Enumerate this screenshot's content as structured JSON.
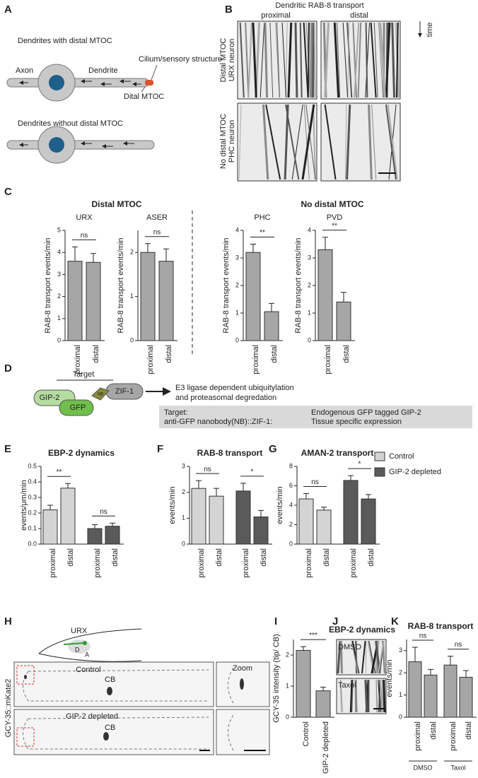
{
  "panel_labels": [
    "A",
    "B",
    "C",
    "D",
    "E",
    "F",
    "G",
    "H",
    "I",
    "J",
    "K"
  ],
  "A": {
    "title1": "Dendrites with distal MTOC",
    "axon": "Axon",
    "dendrite": "Dendrite",
    "cilium": "Cilium/sensory structure",
    "mtoc": "Dital MTOC",
    "title2": "Dendrites without distal MTOC"
  },
  "B": {
    "title": "Dendritic RAB-8 transport",
    "proximal": "proximal",
    "distal": "distal",
    "time": "time",
    "row1": [
      "Distal MTOC",
      "URX neuron"
    ],
    "row2": [
      "No distal MTOC",
      "PHC neuron"
    ]
  },
  "C": {
    "left": "Distal MTOC",
    "right": "No distal MTOC"
  },
  "D": {
    "target": "Target",
    "gip2": "GIP-2",
    "gfp": "GFP",
    "nb": "NB",
    "zif1": "ZIF-1",
    "outcome": [
      "E3 ligase dependent ubiquitylation",
      "and proteasomal degredation"
    ],
    "table": [
      [
        "Target:",
        "Endogenous GFP tagged GIP-2"
      ],
      [
        "anti-GFP nanobody(NB)::ZIF-1:",
        "Tissue specific expression"
      ]
    ]
  },
  "H": {
    "urx": "URX",
    "d": "D",
    "a": "A",
    "control": "Control",
    "cb1": "CB",
    "zoom": "Zoom",
    "depleted": "GIP-2 depleted",
    "cb2": "CB",
    "ylabel": "GCY-35::mKate2"
  },
  "J": {
    "title": "EBP-2 dynamics",
    "dmso": "DMSO",
    "taxol": "Taxol"
  },
  "legend": [
    {
      "name": "Control",
      "color": "#d4d4d4"
    },
    {
      "name": "GIP-2 depleted",
      "color": "#5a5a5a"
    }
  ],
  "chart_data": [
    {
      "type": "bar",
      "title": "URX",
      "ylabel": "RAB-8 transport events/min",
      "categories": [
        "proximal",
        "distal"
      ],
      "values": [
        3.6,
        3.55
      ],
      "errors": [
        0.65,
        0.4
      ],
      "color": "#a6a6a6",
      "ylim": [
        0,
        5
      ],
      "yticks": [
        0,
        1,
        2,
        3,
        4,
        5
      ],
      "significance": [
        "ns"
      ]
    },
    {
      "type": "bar",
      "title": "ASER",
      "ylabel": "RAB-8 transport events/min",
      "categories": [
        "proximal",
        "distal"
      ],
      "values": [
        2.0,
        1.8
      ],
      "errors": [
        0.2,
        0.28
      ],
      "color": "#a6a6a6",
      "ylim": [
        0,
        2.5
      ],
      "yticks": [
        0,
        1,
        2
      ],
      "significance": [
        "ns"
      ]
    },
    {
      "type": "bar",
      "title": "PHC",
      "ylabel": "RAB-8 transport events/min",
      "categories": [
        "proximal",
        "distal"
      ],
      "values": [
        3.2,
        1.05
      ],
      "errors": [
        0.3,
        0.3
      ],
      "color": "#a6a6a6",
      "ylim": [
        0,
        4
      ],
      "yticks": [
        0,
        1,
        2,
        3,
        4
      ],
      "significance": [
        "**"
      ]
    },
    {
      "type": "bar",
      "title": "PVD",
      "ylabel": "RAB-8 transport events/min",
      "categories": [
        "proximal",
        "distal"
      ],
      "values": [
        3.3,
        1.4
      ],
      "errors": [
        0.45,
        0.35
      ],
      "color": "#a6a6a6",
      "ylim": [
        0,
        4
      ],
      "yticks": [
        0,
        1,
        2,
        3,
        4
      ],
      "significance": [
        "**"
      ]
    },
    {
      "type": "bar",
      "title": "EBP-2 dynamics",
      "ylabel": "events/μm/min",
      "categories": [
        "proximal",
        "distal",
        "proximal",
        "distal"
      ],
      "values": [
        0.22,
        0.36,
        0.1,
        0.115
      ],
      "errors": [
        0.03,
        0.03,
        0.025,
        0.02
      ],
      "colors": [
        "#d4d4d4",
        "#d4d4d4",
        "#5a5a5a",
        "#5a5a5a"
      ],
      "ylim": [
        0,
        0.5
      ],
      "yticks": [
        {
          "value": 0,
          "label": "0.0"
        },
        0.1,
        0.2,
        0.3,
        0.4,
        0.5
      ],
      "significance": [
        "**",
        "ns"
      ]
    },
    {
      "type": "bar",
      "title": "RAB-8 transport",
      "ylabel": "events/min",
      "categories": [
        "proximal",
        "distal",
        "proximal",
        "distal"
      ],
      "values": [
        2.15,
        1.85,
        2.05,
        1.05
      ],
      "errors": [
        0.3,
        0.3,
        0.3,
        0.25
      ],
      "colors": [
        "#d4d4d4",
        "#d4d4d4",
        "#5a5a5a",
        "#5a5a5a"
      ],
      "ylim": [
        0,
        3
      ],
      "yticks": [
        0,
        1,
        2,
        3
      ],
      "significance": [
        "ns",
        "*"
      ]
    },
    {
      "type": "bar",
      "title": "AMAN-2 transport",
      "ylabel": "events/min",
      "categories": [
        "proximal",
        "distal",
        "proximal",
        "distal"
      ],
      "values": [
        4.65,
        3.5,
        6.55,
        4.65
      ],
      "errors": [
        0.55,
        0.3,
        0.5,
        0.45
      ],
      "colors": [
        "#d4d4d4",
        "#d4d4d4",
        "#5a5a5a",
        "#5a5a5a"
      ],
      "ylim": [
        0,
        8
      ],
      "yticks": [
        0,
        2,
        4,
        6,
        8
      ],
      "significance": [
        "ns",
        "*"
      ]
    },
    {
      "type": "bar",
      "ylabel": "GCY-35 intensity (tip/ CB)",
      "categories": [
        "Control",
        "GIP-2 depleted"
      ],
      "values": [
        2.15,
        0.85
      ],
      "errors": [
        0.12,
        0.12
      ],
      "color": "#a6a6a6",
      "ylim": [
        0,
        2.5
      ],
      "yticks": [
        0,
        1,
        2
      ],
      "significance": [
        "***"
      ]
    },
    {
      "type": "bar",
      "title": "RAB-8 transport",
      "ylabel": "events/min",
      "categories": [
        "proximal",
        "distal",
        "proximal",
        "distal"
      ],
      "values": [
        2.5,
        1.9,
        2.35,
        1.8
      ],
      "errors": [
        0.65,
        0.25,
        0.4,
        0.3
      ],
      "color": "#a6a6a6",
      "ylim": [
        0,
        3.5
      ],
      "yticks": [
        0,
        1,
        2,
        3
      ],
      "significance": [
        "ns",
        "ns"
      ],
      "group_labels": [
        "DMSO",
        "Taxol"
      ]
    }
  ]
}
